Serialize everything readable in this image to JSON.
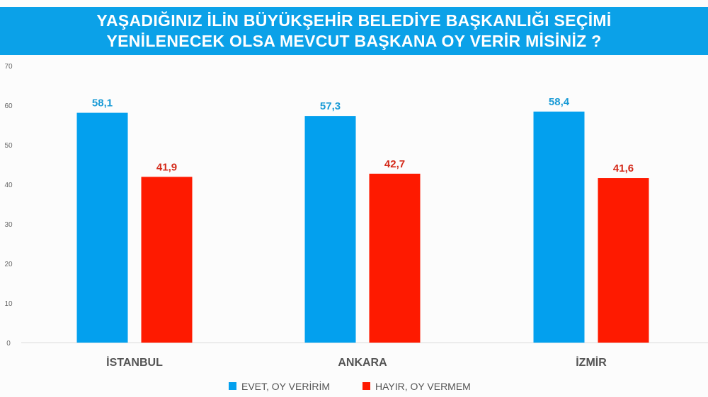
{
  "chart_data": {
    "type": "bar",
    "title_lines": [
      "YAŞADIĞINIZ İLİN BÜYÜKŞEHİR BELEDİYE BAŞKANLIĞI SEÇİMİ",
      "YENİLENECEK OLSA MEVCUT BAŞKANA OY VERİR MİSİNİZ ?"
    ],
    "categories": [
      "İSTANBUL",
      "ANKARA",
      "İZMİR"
    ],
    "series": [
      {
        "name": "EVET, OY VERİRİM",
        "values": [
          58.1,
          57.3,
          58.4
        ],
        "labels": [
          "58,1",
          "57,3",
          "58,4"
        ],
        "color": "#03a0ee",
        "label_color": "#1a9bd6"
      },
      {
        "name": "HAYIR, OY VERMEM",
        "values": [
          41.9,
          42.7,
          41.6
        ],
        "labels": [
          "41,9",
          "42,7",
          "41,6"
        ],
        "color": "#fe1a00",
        "label_color": "#d42a1a"
      }
    ],
    "ylim": [
      0,
      70
    ],
    "yticks": [
      0,
      10,
      20,
      30,
      40,
      50,
      60,
      70
    ],
    "grid": false,
    "legend": "bottom",
    "title_band_color": "#0ba1e8"
  }
}
